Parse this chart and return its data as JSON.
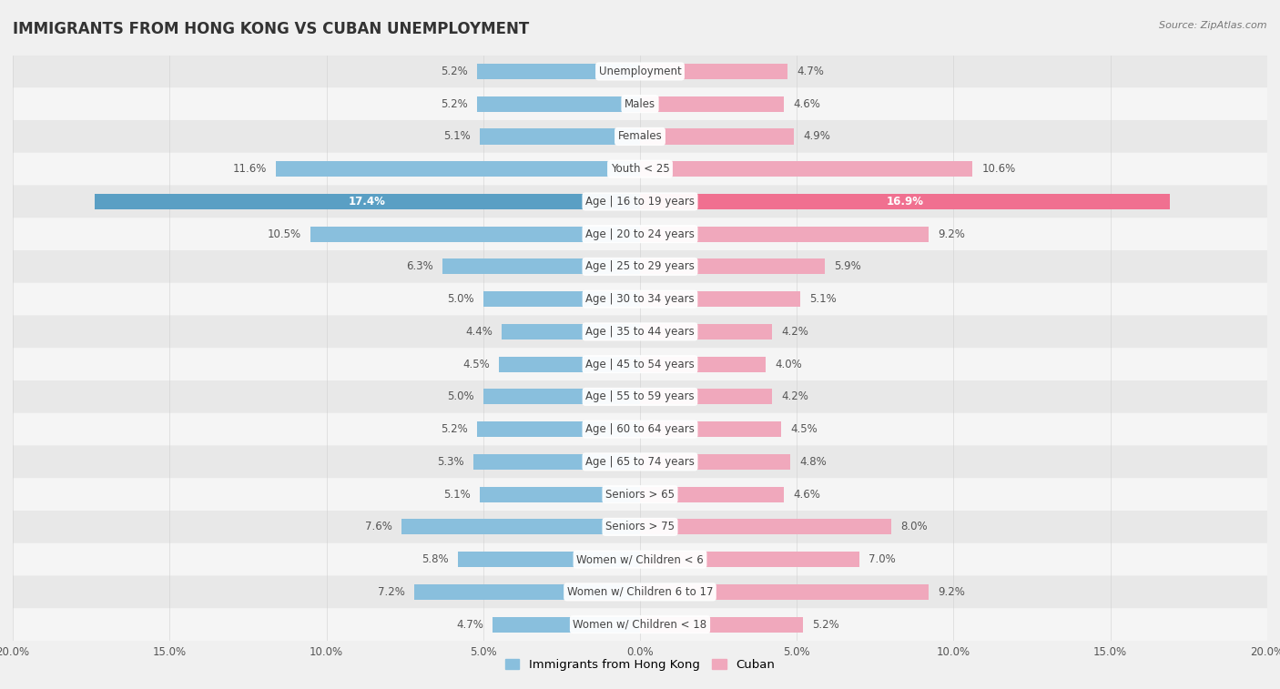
{
  "title": "IMMIGRANTS FROM HONG KONG VS CUBAN UNEMPLOYMENT",
  "source": "Source: ZipAtlas.com",
  "categories": [
    "Unemployment",
    "Males",
    "Females",
    "Youth < 25",
    "Age | 16 to 19 years",
    "Age | 20 to 24 years",
    "Age | 25 to 29 years",
    "Age | 30 to 34 years",
    "Age | 35 to 44 years",
    "Age | 45 to 54 years",
    "Age | 55 to 59 years",
    "Age | 60 to 64 years",
    "Age | 65 to 74 years",
    "Seniors > 65",
    "Seniors > 75",
    "Women w/ Children < 6",
    "Women w/ Children 6 to 17",
    "Women w/ Children < 18"
  ],
  "hk_values": [
    5.2,
    5.2,
    5.1,
    11.6,
    17.4,
    10.5,
    6.3,
    5.0,
    4.4,
    4.5,
    5.0,
    5.2,
    5.3,
    5.1,
    7.6,
    5.8,
    7.2,
    4.7
  ],
  "cuban_values": [
    4.7,
    4.6,
    4.9,
    10.6,
    16.9,
    9.2,
    5.9,
    5.1,
    4.2,
    4.0,
    4.2,
    4.5,
    4.8,
    4.6,
    8.0,
    7.0,
    9.2,
    5.2
  ],
  "hk_color": "#89bfdd",
  "cuban_color": "#f0a8bc",
  "hk_highlight_color": "#5a9fc4",
  "cuban_highlight_color": "#f07090",
  "hk_value_color": "#4a90b8",
  "cuban_value_color": "#e05070",
  "axis_max": 20.0,
  "bar_height": 0.48,
  "bg_color": "#f0f0f0",
  "row_even_color": "#e8e8e8",
  "row_odd_color": "#f5f5f5",
  "label_fontsize": 8.5,
  "value_fontsize": 8.5,
  "title_fontsize": 12,
  "source_fontsize": 8,
  "legend_label_hk": "Immigrants from Hong Kong",
  "legend_label_cuban": "Cuban",
  "x_ticks": [
    20.0,
    15.0,
    10.0,
    5.0,
    0.0,
    5.0,
    10.0,
    15.0,
    20.0
  ]
}
